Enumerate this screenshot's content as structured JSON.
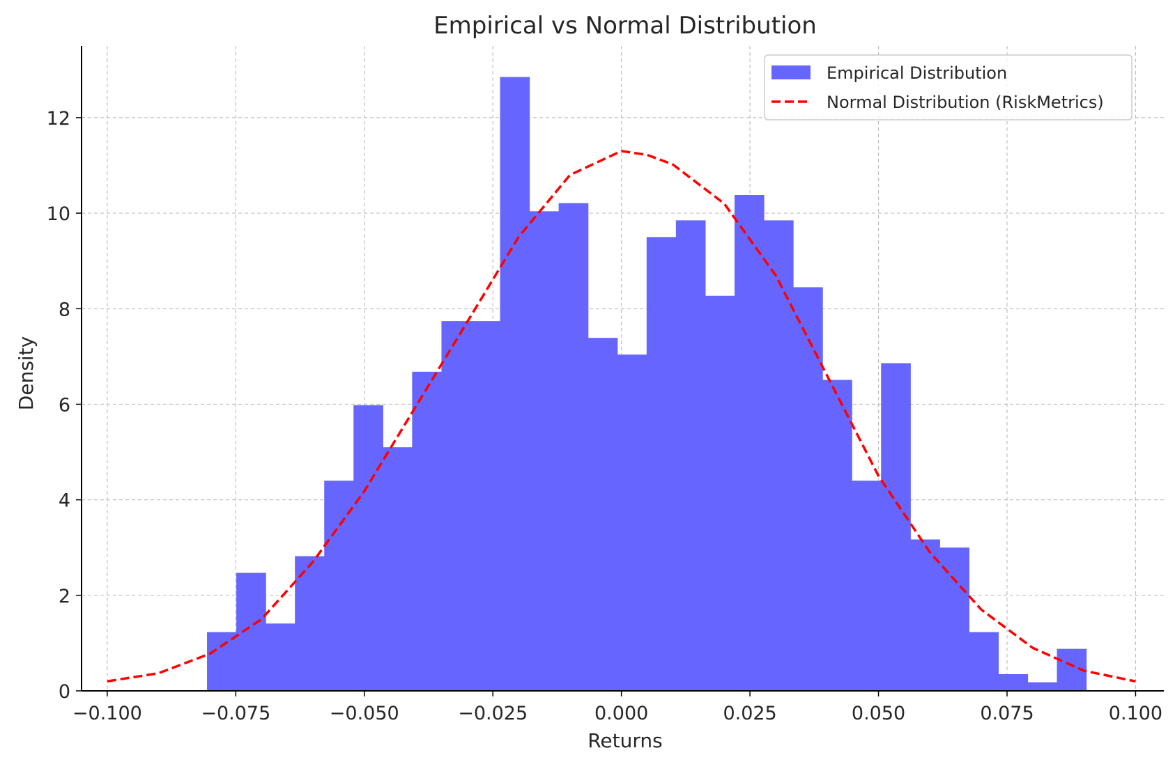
{
  "chart_data": {
    "type": "bar",
    "title": "Empirical vs Normal Distribution",
    "xlabel": "Returns",
    "ylabel": "Density",
    "xlim": [
      -0.105,
      0.1055
    ],
    "ylim": [
      0,
      13.5
    ],
    "grid": true,
    "legend_position": "top-right",
    "x_ticks": [
      -0.1,
      -0.075,
      -0.05,
      -0.025,
      0.0,
      0.025,
      0.05,
      0.075,
      0.1
    ],
    "x_tick_labels": [
      "−0.100",
      "−0.075",
      "−0.050",
      "−0.025",
      "0.000",
      "0.025",
      "0.050",
      "0.075",
      "0.100"
    ],
    "y_ticks": [
      0,
      2,
      4,
      6,
      8,
      10,
      12
    ],
    "y_tick_labels": [
      "0",
      "2",
      "4",
      "6",
      "8",
      "10",
      "12"
    ],
    "series": [
      {
        "name": "Empirical Distribution",
        "kind": "histogram",
        "color": "#6666ff",
        "bin_edges": [
          -0.0806,
          -0.0749,
          -0.0692,
          -0.0635,
          -0.0578,
          -0.0521,
          -0.0464,
          -0.0407,
          -0.035,
          -0.0293,
          -0.0236,
          -0.0179,
          -0.0122,
          -0.0065,
          -0.0008,
          0.0049,
          0.0106,
          0.0163,
          0.022,
          0.0277,
          0.0334,
          0.0391,
          0.0448,
          0.0505,
          0.0562,
          0.0619,
          0.0676,
          0.0733,
          0.079,
          0.0847,
          0.0904
        ],
        "values": [
          1.23,
          2.47,
          1.41,
          2.82,
          4.4,
          5.98,
          5.1,
          6.68,
          7.74,
          7.74,
          12.85,
          10.04,
          10.21,
          7.39,
          7.04,
          9.5,
          9.85,
          8.27,
          10.38,
          9.85,
          8.45,
          6.51,
          4.4,
          6.86,
          3.17,
          3.0,
          1.23,
          0.35,
          0.18,
          0.88
        ]
      },
      {
        "name": "Normal Distribution (RiskMetrics)",
        "kind": "line",
        "style": "dashed",
        "color": "#ff0000",
        "x": [
          -0.1,
          -0.09,
          -0.08,
          -0.07,
          -0.06,
          -0.05,
          -0.04,
          -0.03,
          -0.02,
          -0.01,
          0.0,
          0.005,
          0.01,
          0.02,
          0.03,
          0.04,
          0.05,
          0.06,
          0.07,
          0.08,
          0.09,
          0.1
        ],
        "y": [
          0.2,
          0.37,
          0.78,
          1.5,
          2.7,
          4.18,
          5.95,
          7.72,
          9.5,
          10.8,
          11.3,
          11.22,
          11.02,
          10.2,
          8.7,
          6.6,
          4.5,
          2.9,
          1.7,
          0.9,
          0.42,
          0.2
        ]
      }
    ]
  }
}
